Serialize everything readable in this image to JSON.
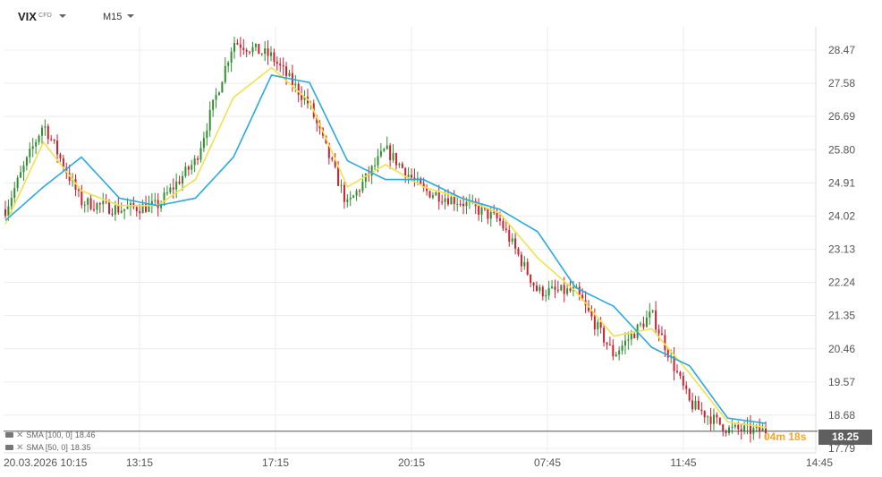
{
  "header": {
    "symbol": "VIX",
    "symbol_type": "CFD",
    "timeframe": "M15"
  },
  "indicators": [
    {
      "label": "SMA [100, 0]",
      "value": "18.46",
      "color": "#29a9e0"
    },
    {
      "label": "SMA [50, 0]",
      "value": "18.35",
      "color": "#f2e14d"
    }
  ],
  "current_price": "18.25",
  "countdown": "04m 18s",
  "colors": {
    "bull": "#2f8f2f",
    "bear": "#cc1f2f",
    "sma100": "#29a9e0",
    "sma50": "#f2e14d",
    "grid": "#ececec",
    "price_line": "#555555",
    "price_tag": "#5f5f5f",
    "countdown": "#f5a623"
  },
  "chart_data": {
    "type": "line",
    "subtype": "candlestick",
    "grid": true,
    "y_tick_labels": [
      "28.47",
      "27.58",
      "26.69",
      "25.80",
      "24.91",
      "24.02",
      "23.13",
      "22.24",
      "21.35",
      "20.46",
      "19.57",
      "18.68",
      "17.79"
    ],
    "x_tick_labels": [
      "20.03.2026 10:15",
      "13:15",
      "17:15",
      "20:15",
      "07:45",
      "11:45",
      "14:45"
    ],
    "ylim": [
      17.6,
      28.8
    ],
    "x": [
      "10:15",
      "11:15",
      "12:15",
      "13:15",
      "14:15",
      "15:15",
      "16:15",
      "17:15",
      "18:15",
      "19:15",
      "20:15",
      "21:15",
      "22:15",
      "07:45",
      "08:45",
      "09:45",
      "10:45",
      "11:45",
      "12:45",
      "13:45",
      "14:30"
    ],
    "series": [
      {
        "name": "VIX",
        "values": [
          24.2,
          26.5,
          24.4,
          24.2,
          24.3,
          25.5,
          28.7,
          28.3,
          27.0,
          24.3,
          25.8,
          24.7,
          24.4,
          23.9,
          22.0,
          22.0,
          20.3,
          21.4,
          19.0,
          18.3,
          18.25
        ]
      },
      {
        "name": "SMA [100, 0]",
        "values": [
          23.9,
          24.8,
          25.6,
          24.5,
          24.3,
          24.5,
          25.6,
          27.8,
          27.6,
          25.5,
          25.0,
          25.0,
          24.5,
          24.2,
          23.6,
          22.1,
          21.6,
          20.5,
          20.0,
          18.6,
          18.46
        ]
      },
      {
        "name": "SMA [50, 0]",
        "values": [
          23.8,
          26.0,
          24.7,
          24.3,
          24.3,
          25.0,
          27.2,
          28.0,
          27.1,
          24.8,
          25.4,
          24.8,
          24.5,
          24.1,
          22.9,
          22.0,
          20.8,
          21.0,
          19.8,
          18.5,
          18.35
        ]
      }
    ]
  }
}
